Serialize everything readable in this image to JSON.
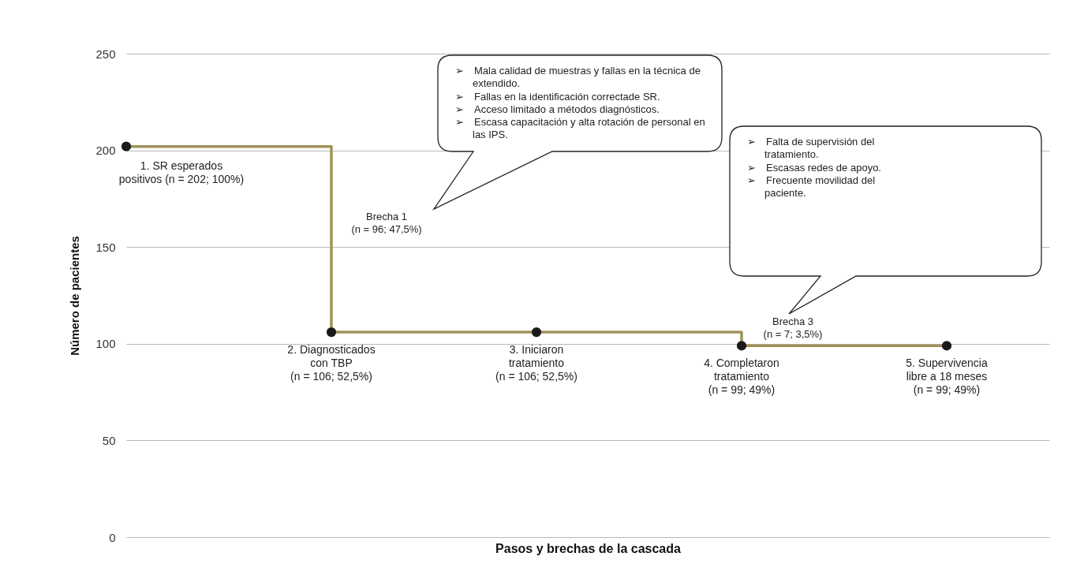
{
  "chart_data": {
    "type": "step",
    "xlabel": "Pasos y brechas de la cascada",
    "ylabel": "Número de pacientes",
    "categories": [
      null,
      null,
      null,
      null,
      null
    ],
    "series": [
      {
        "color": "#a0925a",
        "values": [
          202,
          106,
          106,
          99,
          99
        ],
        "value_labels": [
          "1. SR esperados\npositivos (n = 202; 100%)",
          "2. Diagnosticados\ncon TBP\n(n = 106; 52,5%)",
          "3. Iniciaron\ntratamiento\n(n = 106; 52,5%)",
          "4. Completaron\ntratamiento\n(n = 99; 49%)",
          "5. Supervivencia\nlibre a 18 meses\n(n = 99; 49%)"
        ]
      }
    ],
    "ylim": [
      0,
      250
    ],
    "yticks": [
      0,
      50,
      100,
      150,
      200,
      250
    ],
    "grid": "y",
    "marker": "circle",
    "line_style": "solid",
    "tick_labels": "y",
    "annotations": [
      "Brecha 1\n(n = 96; 47,5%)",
      "Brecha 3\n(n = 7; 3,5%)",
      "➢ Mala calidad de muestras y fallas en la técnica de extendido.\n➢ Fallas en la identificación correctade SR.\n➢ Acceso limitado a métodos diagnósticos.\n➢ Escasa capacitación y alta rotación de personal en las IPS.",
      "➢ Falta de supervisión del tratamiento.\n➢ Escasas redes de apoyo.\n➢ Frecuente movilidad del paciente."
    ]
  }
}
